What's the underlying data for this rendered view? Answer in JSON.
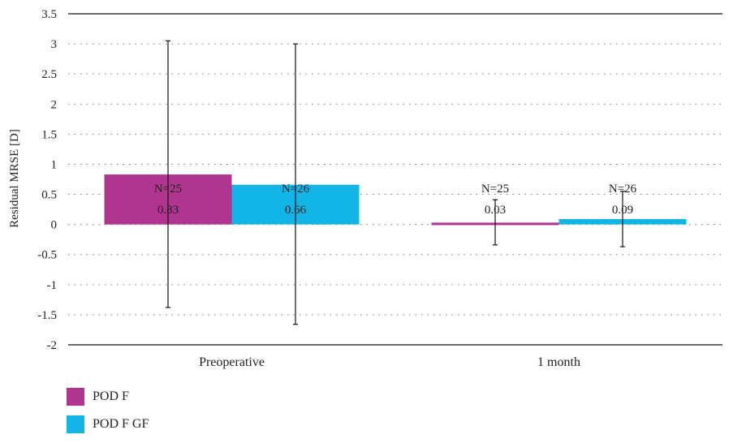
{
  "chart_data": {
    "type": "bar",
    "ylabel": "Residual MRSE [D]",
    "xlabel": "",
    "title": "",
    "ylim": [
      -2,
      3.5
    ],
    "yticks": [
      "3.5",
      "3",
      "2.5",
      "2",
      "1.5",
      "1",
      "0.5",
      "0",
      "-0.5",
      "-1",
      "-1.5",
      "-2"
    ],
    "ytick_values": [
      3.5,
      3,
      2.5,
      2,
      1.5,
      1,
      0.5,
      0,
      -0.5,
      -1,
      -1.5,
      -2
    ],
    "grid": "dotted horizontal",
    "legend_position": "bottom-left",
    "categories": [
      "Preoperative",
      "1 month"
    ],
    "series": [
      {
        "name": "POD F",
        "color": "#b0358e",
        "values": [
          0.83,
          0.03
        ],
        "error_low": [
          -1.38,
          -0.34
        ],
        "error_high": [
          3.05,
          0.41
        ],
        "n_labels": [
          "N=25",
          "N=25"
        ],
        "value_labels": [
          "0.83",
          "0.03"
        ]
      },
      {
        "name": "POD F GF",
        "color": "#12b5e6",
        "values": [
          0.66,
          0.09
        ],
        "error_low": [
          -1.66,
          -0.37
        ],
        "error_high": [
          3.0,
          0.55
        ],
        "n_labels": [
          "N=26",
          "N=26"
        ],
        "value_labels": [
          "0.66",
          "0.09"
        ]
      }
    ]
  }
}
